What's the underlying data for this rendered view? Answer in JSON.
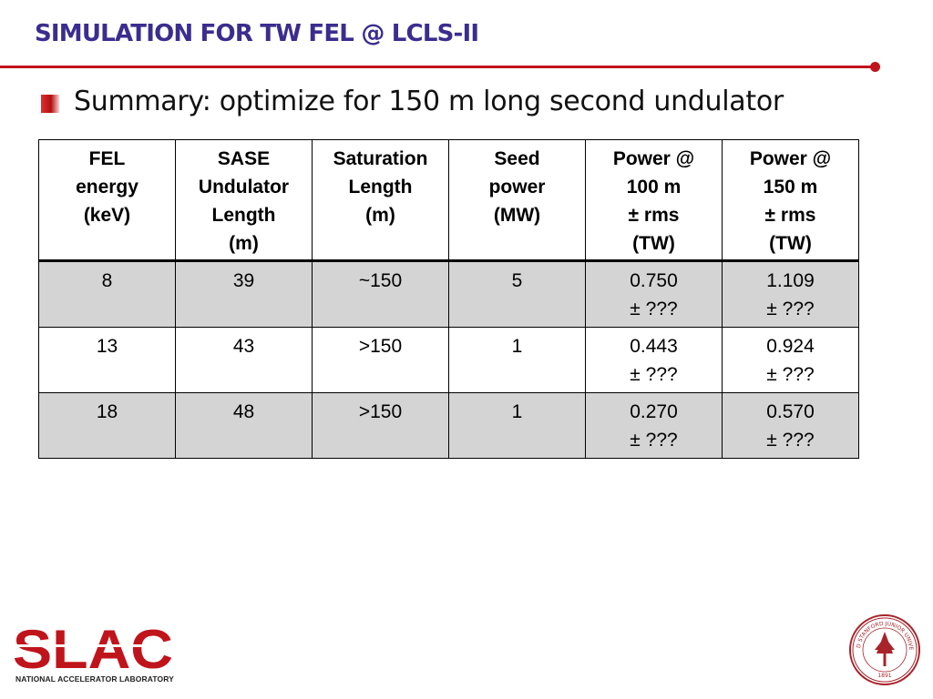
{
  "slide": {
    "title": "SIMULATION FOR TW FEL @ LCLS-II",
    "bullet": "Summary: optimize for 150 m long second undulator"
  },
  "table": {
    "headers": [
      [
        "FEL",
        "energy",
        "(keV)"
      ],
      [
        "SASE",
        "Undulator",
        "Length",
        "(m)"
      ],
      [
        "Saturation",
        "Length",
        "(m)"
      ],
      [
        "Seed",
        "power",
        "(MW)"
      ],
      [
        "Power @",
        "100 m",
        "± rms",
        "(TW)"
      ],
      [
        "Power @",
        "150 m",
        "± rms",
        "(TW)"
      ]
    ],
    "rows": [
      [
        "8",
        "39",
        "~150",
        "5",
        [
          "0.750",
          "± ???"
        ],
        [
          "1.109",
          "± ???"
        ]
      ],
      [
        "13",
        "43",
        ">150",
        "1",
        [
          "0.443",
          "± ???"
        ],
        [
          "0.924",
          "± ???"
        ]
      ],
      [
        "18",
        "48",
        ">150",
        "1",
        [
          "0.270",
          "± ???"
        ],
        [
          "0.570",
          "± ???"
        ]
      ]
    ]
  },
  "logos": {
    "slac_text": "SLAC",
    "slac_caption": "NATIONAL ACCELERATOR LABORATORY",
    "seal_text": "LELAND STANFORD JUNIOR UNIVERSITY",
    "seal_year": "1891"
  },
  "colors": {
    "title": "#3b2d8f",
    "accent": "#c0141c",
    "row_shade": "#d4d4d4"
  }
}
